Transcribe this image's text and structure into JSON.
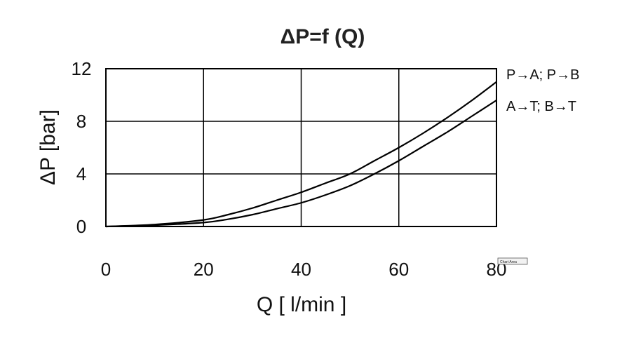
{
  "chart_data": {
    "type": "line",
    "title": "ΔP=f (Q)",
    "xlabel": "Q [ l/min ]",
    "ylabel": "ΔP [bar]",
    "xlim": [
      0,
      80
    ],
    "ylim": [
      0,
      12
    ],
    "x_ticks": [
      "0",
      "20",
      "40",
      "60",
      "80"
    ],
    "y_ticks": [
      "0",
      "4",
      "8",
      "12"
    ],
    "grid": true,
    "series": [
      {
        "name": "P→A; P→B",
        "color": "#000000",
        "x": [
          0,
          10,
          20,
          25,
          30,
          35,
          40,
          45,
          50,
          55,
          60,
          65,
          70,
          75,
          80
        ],
        "y": [
          0,
          0.15,
          0.5,
          0.9,
          1.4,
          2.0,
          2.6,
          3.3,
          4.0,
          5.0,
          6.0,
          7.1,
          8.3,
          9.6,
          11.0
        ]
      },
      {
        "name": "A→T; B→T",
        "color": "#000000",
        "x": [
          0,
          10,
          20,
          25,
          30,
          35,
          40,
          45,
          50,
          55,
          60,
          65,
          70,
          75,
          80
        ],
        "y": [
          0,
          0.1,
          0.3,
          0.55,
          0.9,
          1.35,
          1.8,
          2.4,
          3.1,
          4.0,
          5.0,
          6.1,
          7.2,
          8.4,
          9.6
        ]
      }
    ],
    "tooltip": "Chart Area"
  }
}
